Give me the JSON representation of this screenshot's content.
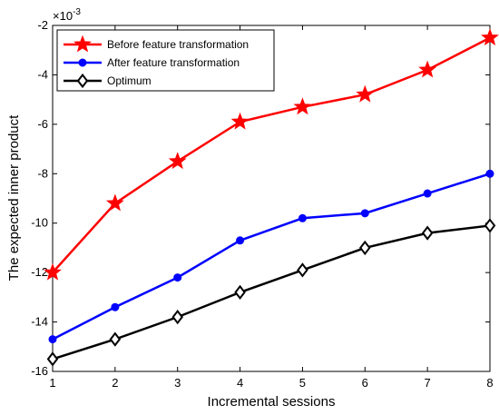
{
  "chart_data": {
    "type": "line",
    "xlabel": "Incremental sessions",
    "ylabel": "The expected inner product",
    "y_multiplier": "×10",
    "y_multiplier_exponent": "-3",
    "x": [
      1,
      2,
      3,
      4,
      5,
      6,
      7,
      8
    ],
    "xlim": [
      1,
      8
    ],
    "ylim": [
      -16,
      -2
    ],
    "xticks": [
      "1",
      "2",
      "3",
      "4",
      "5",
      "6",
      "7",
      "8"
    ],
    "yticks": [
      "-16",
      "-14",
      "-12",
      "-10",
      "-8",
      "-6",
      "-4",
      "-2"
    ],
    "grid": false,
    "legend_position": "top-left",
    "series": [
      {
        "name": "Before feature transformation",
        "color": "#ff0000",
        "marker": "star",
        "values": [
          -12.0,
          -9.2,
          -7.5,
          -5.9,
          -5.3,
          -4.8,
          -3.8,
          -2.5
        ]
      },
      {
        "name": "After feature transformation",
        "color": "#0000ff",
        "marker": "dot",
        "values": [
          -14.7,
          -13.4,
          -12.2,
          -10.7,
          -9.8,
          -9.6,
          -8.8,
          -8.0
        ]
      },
      {
        "name": "Optimum",
        "color": "#000000",
        "marker": "diamond",
        "values": [
          -15.5,
          -14.7,
          -13.8,
          -12.8,
          -11.9,
          -11.0,
          -10.4,
          -10.1
        ]
      }
    ]
  }
}
